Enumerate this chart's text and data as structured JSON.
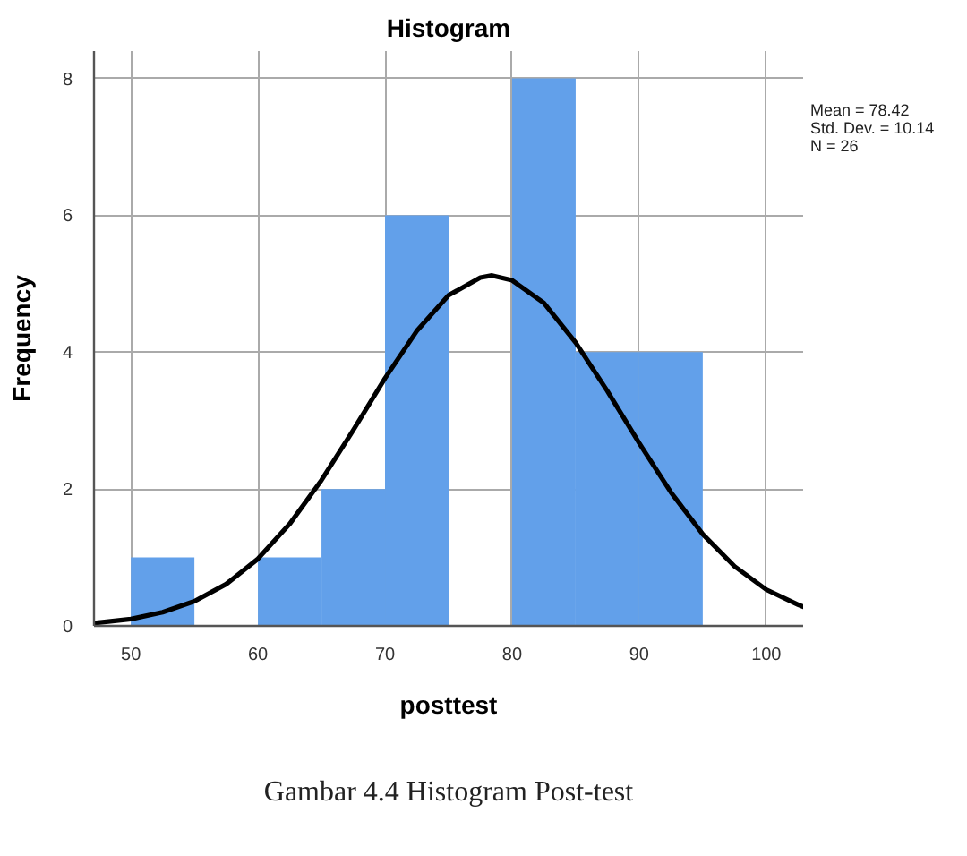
{
  "chart_data": {
    "type": "histogram",
    "title": "Histogram",
    "xlabel": "posttest",
    "ylabel": "Frequency",
    "bins": [
      50,
      55,
      60,
      65,
      70,
      75,
      80,
      85,
      90,
      95
    ],
    "series": [
      {
        "color": "#62a0ea",
        "values": [
          1,
          0,
          1,
          2,
          6,
          0,
          8,
          4,
          4
        ]
      },
      {
        "type": "line",
        "color": "#000000",
        "x": [
          47.1,
          50,
          52.5,
          55,
          57.5,
          60,
          62.5,
          65,
          67.5,
          70,
          72.5,
          75,
          77.5,
          78.42,
          80,
          82.5,
          85,
          87.5,
          90,
          92.5,
          95,
          97.5,
          100,
          102.5,
          102.9
        ],
        "values": [
          0.04,
          0.1,
          0.2,
          0.36,
          0.61,
          0.98,
          1.49,
          2.13,
          2.86,
          3.62,
          4.31,
          4.83,
          5.09,
          5.12,
          5.05,
          4.72,
          4.14,
          3.43,
          2.67,
          1.95,
          1.34,
          0.87,
          0.53,
          0.31,
          0.28
        ]
      }
    ],
    "xlim": [
      47.1,
      102.9
    ],
    "ylim": [
      0,
      8.4
    ],
    "xticks": [
      50,
      60,
      70,
      80,
      90,
      100
    ],
    "yticks": [
      0,
      2,
      4,
      6,
      8
    ],
    "grid": true,
    "annotations": [
      "Mean = 78.42",
      "Std. Dev. = 10.14",
      "N = 26",
      "Gambar 4.4 Histogram Post-test"
    ]
  }
}
